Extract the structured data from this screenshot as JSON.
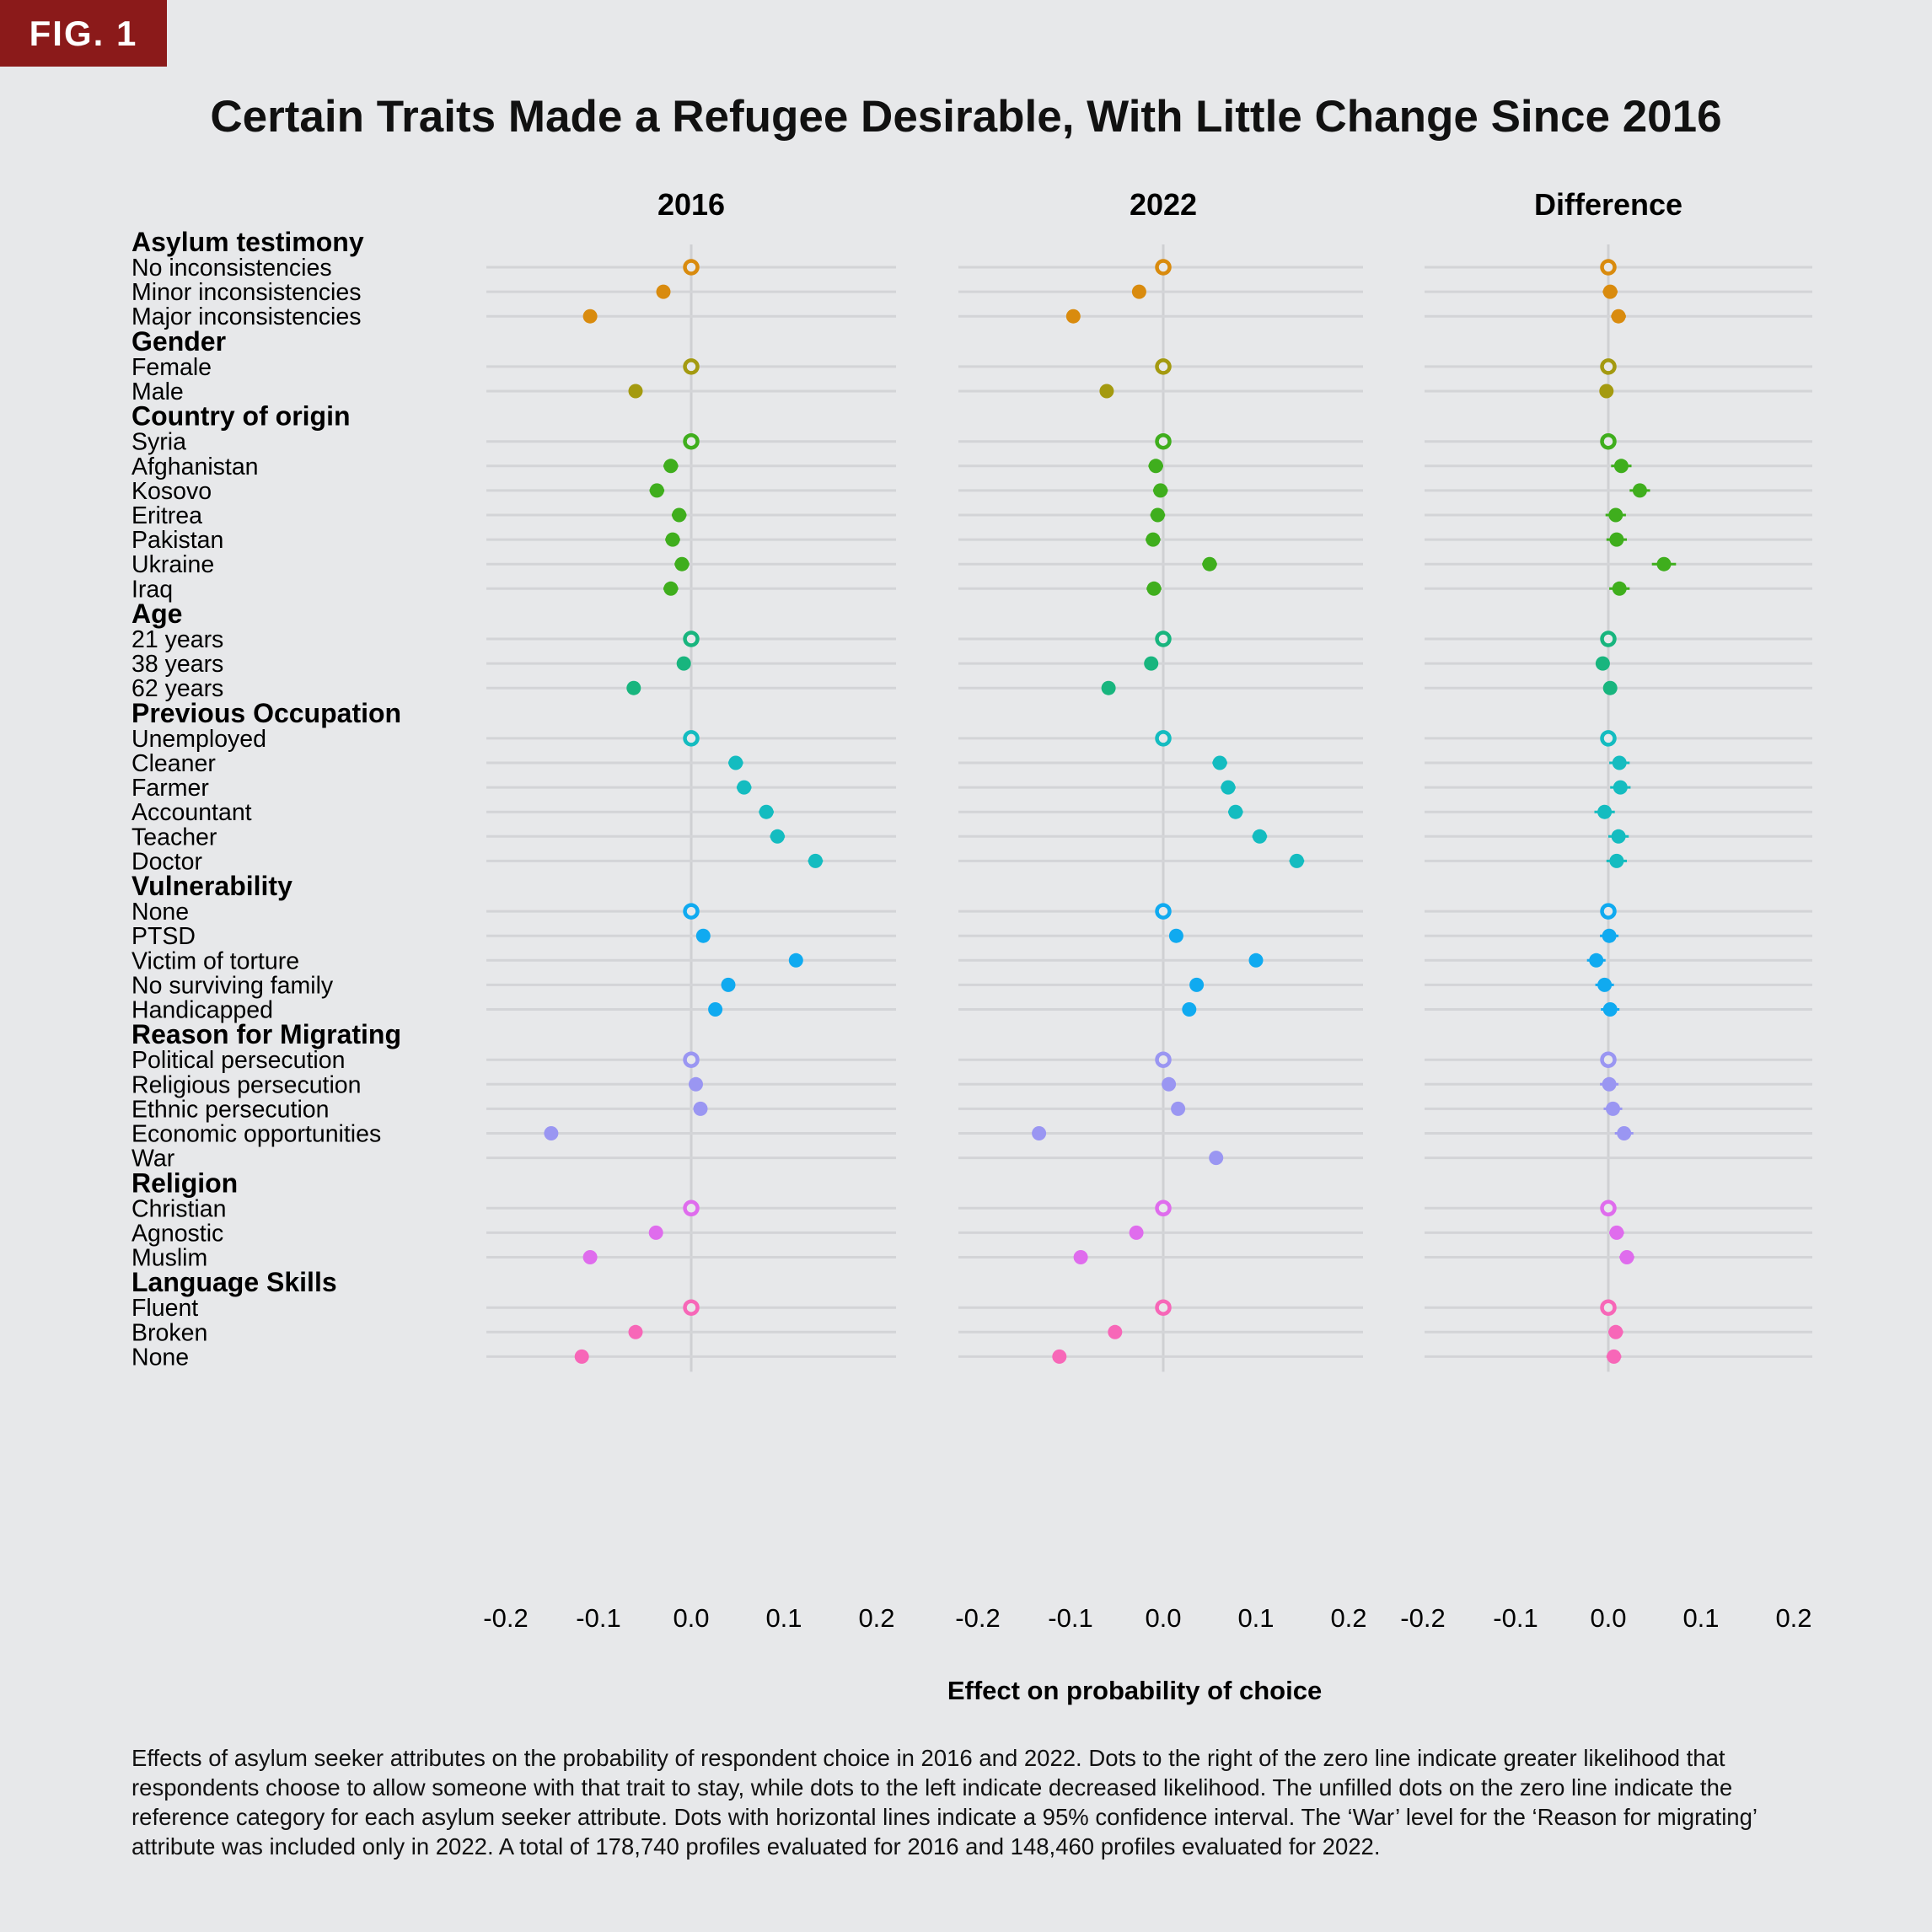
{
  "fig_label": "FIG. 1",
  "caption": "Effects of asylum seeker attributes on the probability of respondent choice in 2016 and 2022. Dots to the right of the zero line indicate greater likelihood that respondents choose to allow someone with that trait to stay, while dots to the left indicate decreased likelihood. The unfilled dots on the zero line indicate the reference category for each asylum seeker attribute. Dots with horizontal lines indicate a 95% confidence interval. The ‘War’ level for the ‘Reason for migrating’ attribute was included only in 2022. A total of 178,740 profiles evaluated for 2016 and 148,460 profiles evaluated for 2022.",
  "chart_data": {
    "type": "scatter",
    "title": "Certain Traits Made a Refugee Desirable, With Little Change Since 2016",
    "xlabel": "Effect on probability of choice",
    "panels": [
      "2016",
      "2022",
      "Difference"
    ],
    "xlim": [
      -0.2,
      0.2
    ],
    "xticks": [
      "-0.2",
      "-0.1",
      "0.0",
      "0.1",
      "0.2"
    ],
    "grid": true,
    "legend": "none",
    "note": "Hollow markers denote the reference category (value 0). Values are [estimate, ci_low, ci_high].",
    "groups": [
      {
        "name": "Asylum testimony",
        "color": "#d98b0e",
        "levels": [
          {
            "label": "No inconsistencies",
            "ref": true,
            "v2016": [
              0,
              0,
              0
            ],
            "v2022": [
              0,
              0,
              0
            ],
            "diff": [
              0,
              0,
              0
            ]
          },
          {
            "label": "Minor inconsistencies",
            "v2016": [
              -0.03,
              -0.036,
              -0.024
            ],
            "v2022": [
              -0.026,
              -0.032,
              -0.02
            ],
            "diff": [
              0.002,
              -0.006,
              0.01
            ]
          },
          {
            "label": "Major inconsistencies",
            "v2016": [
              -0.109,
              -0.115,
              -0.103
            ],
            "v2022": [
              -0.097,
              -0.103,
              -0.091
            ],
            "diff": [
              0.011,
              0.003,
              0.019
            ]
          }
        ]
      },
      {
        "name": "Gender",
        "color": "#a49a10",
        "levels": [
          {
            "label": "Female",
            "ref": true,
            "v2016": [
              0,
              0,
              0
            ],
            "v2022": [
              0,
              0,
              0
            ],
            "diff": [
              0,
              0,
              0
            ]
          },
          {
            "label": "Male",
            "v2016": [
              -0.06,
              -0.065,
              -0.055
            ],
            "v2022": [
              -0.061,
              -0.066,
              -0.056
            ],
            "diff": [
              -0.002,
              -0.008,
              0.004
            ]
          }
        ]
      },
      {
        "name": "Country of origin",
        "color": "#3fae1d",
        "levels": [
          {
            "label": "Syria",
            "ref": true,
            "v2016": [
              0,
              0,
              0
            ],
            "v2022": [
              0,
              0,
              0
            ],
            "diff": [
              0,
              0,
              0
            ]
          },
          {
            "label": "Afghanistan",
            "v2016": [
              -0.022,
              -0.03,
              -0.014
            ],
            "v2022": [
              -0.008,
              -0.016,
              0
            ],
            "diff": [
              0.014,
              0.003,
              0.025
            ]
          },
          {
            "label": "Kosovo",
            "v2016": [
              -0.037,
              -0.045,
              -0.029
            ],
            "v2022": [
              -0.003,
              -0.011,
              0.005
            ],
            "diff": [
              0.034,
              0.023,
              0.045
            ]
          },
          {
            "label": "Eritrea",
            "v2016": [
              -0.013,
              -0.021,
              -0.005
            ],
            "v2022": [
              -0.006,
              -0.014,
              0.002
            ],
            "diff": [
              0.008,
              -0.003,
              0.019
            ]
          },
          {
            "label": "Pakistan",
            "v2016": [
              -0.02,
              -0.028,
              -0.012
            ],
            "v2022": [
              -0.011,
              -0.019,
              -0.003
            ],
            "diff": [
              0.009,
              -0.002,
              0.02
            ]
          },
          {
            "label": "Ukraine",
            "v2016": [
              -0.01,
              -0.018,
              -0.002
            ],
            "v2022": [
              0.05,
              0.042,
              0.058
            ],
            "diff": [
              0.06,
              0.047,
              0.073
            ]
          },
          {
            "label": "Iraq",
            "v2016": [
              -0.022,
              -0.03,
              -0.014
            ],
            "v2022": [
              -0.01,
              -0.018,
              -0.002
            ],
            "diff": [
              0.012,
              0.001,
              0.023
            ]
          }
        ]
      },
      {
        "name": "Age",
        "color": "#18b57e",
        "levels": [
          {
            "label": "21 years",
            "ref": true,
            "v2016": [
              0,
              0,
              0
            ],
            "v2022": [
              0,
              0,
              0
            ],
            "diff": [
              0,
              0,
              0
            ]
          },
          {
            "label": "38 years",
            "v2016": [
              -0.008,
              -0.013,
              -0.003
            ],
            "v2022": [
              -0.013,
              -0.018,
              -0.008
            ],
            "diff": [
              -0.006,
              -0.012,
              0.001
            ]
          },
          {
            "label": "62 years",
            "v2016": [
              -0.062,
              -0.067,
              -0.057
            ],
            "v2022": [
              -0.059,
              -0.064,
              -0.054
            ],
            "diff": [
              0.002,
              -0.005,
              0.009
            ]
          }
        ]
      },
      {
        "name": "Previous Occupation",
        "color": "#14bcc0",
        "levels": [
          {
            "label": "Unemployed",
            "ref": true,
            "v2016": [
              0,
              0,
              0
            ],
            "v2022": [
              0,
              0,
              0
            ],
            "diff": [
              0,
              0,
              0
            ]
          },
          {
            "label": "Cleaner",
            "v2016": [
              0.048,
              0.04,
              0.056
            ],
            "v2022": [
              0.061,
              0.053,
              0.069
            ],
            "diff": [
              0.012,
              0.001,
              0.023
            ]
          },
          {
            "label": "Farmer",
            "v2016": [
              0.057,
              0.049,
              0.065
            ],
            "v2022": [
              0.07,
              0.062,
              0.078
            ],
            "diff": [
              0.013,
              0.002,
              0.024
            ]
          },
          {
            "label": "Accountant",
            "v2016": [
              0.081,
              0.073,
              0.089
            ],
            "v2022": [
              0.078,
              0.07,
              0.086
            ],
            "diff": [
              -0.004,
              -0.015,
              0.007
            ]
          },
          {
            "label": "Teacher",
            "v2016": [
              0.093,
              0.085,
              0.101
            ],
            "v2022": [
              0.104,
              0.096,
              0.112
            ],
            "diff": [
              0.011,
              0,
              0.022
            ]
          },
          {
            "label": "Doctor",
            "v2016": [
              0.134,
              0.126,
              0.142
            ],
            "v2022": [
              0.144,
              0.136,
              0.152
            ],
            "diff": [
              0.009,
              -0.002,
              0.02
            ]
          }
        ]
      },
      {
        "name": "Vulnerability",
        "color": "#10aaf0",
        "levels": [
          {
            "label": "None",
            "ref": true,
            "v2016": [
              0,
              0,
              0
            ],
            "v2022": [
              0,
              0,
              0
            ],
            "diff": [
              0,
              0,
              0
            ]
          },
          {
            "label": "PTSD",
            "v2016": [
              0.013,
              0.006,
              0.02
            ],
            "v2022": [
              0.014,
              0.007,
              0.021
            ],
            "diff": [
              0.001,
              -0.009,
              0.011
            ]
          },
          {
            "label": "Victim of torture",
            "v2016": [
              0.113,
              0.106,
              0.12
            ],
            "v2022": [
              0.1,
              0.093,
              0.107
            ],
            "diff": [
              -0.013,
              -0.023,
              -0.003
            ]
          },
          {
            "label": "No surviving family",
            "v2016": [
              0.04,
              0.033,
              0.047
            ],
            "v2022": [
              0.036,
              0.029,
              0.043
            ],
            "diff": [
              -0.004,
              -0.014,
              0.006
            ]
          },
          {
            "label": "Handicapped",
            "v2016": [
              0.026,
              0.019,
              0.033
            ],
            "v2022": [
              0.028,
              0.021,
              0.035
            ],
            "diff": [
              0.002,
              -0.008,
              0.012
            ]
          }
        ]
      },
      {
        "name": "Reason for Migrating",
        "color": "#9a96f2",
        "levels": [
          {
            "label": "Political persecution",
            "ref": true,
            "v2016": [
              0,
              0,
              0
            ],
            "v2022": [
              0,
              0,
              0
            ],
            "diff": [
              0,
              0,
              0
            ]
          },
          {
            "label": "Religious persecution",
            "v2016": [
              0.005,
              -0.002,
              0.012
            ],
            "v2022": [
              0.006,
              -0.001,
              0.013
            ],
            "diff": [
              0.001,
              -0.009,
              0.011
            ]
          },
          {
            "label": "Ethnic persecution",
            "v2016": [
              0.01,
              0.003,
              0.017
            ],
            "v2022": [
              0.016,
              0.009,
              0.023
            ],
            "diff": [
              0.005,
              -0.005,
              0.015
            ]
          },
          {
            "label": "Economic opportunities",
            "v2016": [
              -0.151,
              -0.158,
              -0.144
            ],
            "v2022": [
              -0.134,
              -0.141,
              -0.127
            ],
            "diff": [
              0.017,
              0.007,
              0.027
            ]
          },
          {
            "label": "War",
            "v2016": null,
            "v2022": [
              0.057,
              0.05,
              0.064
            ],
            "diff": null
          }
        ]
      },
      {
        "name": "Religion",
        "color": "#df6ced",
        "levels": [
          {
            "label": "Christian",
            "ref": true,
            "v2016": [
              0,
              0,
              0
            ],
            "v2022": [
              0,
              0,
              0
            ],
            "diff": [
              0,
              0,
              0
            ]
          },
          {
            "label": "Agnostic",
            "v2016": [
              -0.038,
              -0.044,
              -0.032
            ],
            "v2022": [
              -0.029,
              -0.035,
              -0.023
            ],
            "diff": [
              0.009,
              0.001,
              0.017
            ]
          },
          {
            "label": "Muslim",
            "v2016": [
              -0.109,
              -0.115,
              -0.103
            ],
            "v2022": [
              -0.089,
              -0.095,
              -0.083
            ],
            "diff": [
              0.02,
              0.012,
              0.028
            ]
          }
        ]
      },
      {
        "name": "Language Skills",
        "color": "#f767b8",
        "levels": [
          {
            "label": "Fluent",
            "ref": true,
            "v2016": [
              0,
              0,
              0
            ],
            "v2022": [
              0,
              0,
              0
            ],
            "diff": [
              0,
              0,
              0
            ]
          },
          {
            "label": "Broken",
            "v2016": [
              -0.06,
              -0.066,
              -0.054
            ],
            "v2022": [
              -0.052,
              -0.058,
              -0.046
            ],
            "diff": [
              0.008,
              0,
              0.016
            ]
          },
          {
            "label": "None",
            "v2016": [
              -0.118,
              -0.124,
              -0.112
            ],
            "v2022": [
              -0.112,
              -0.118,
              -0.106
            ],
            "diff": [
              0.006,
              -0.002,
              0.014
            ]
          }
        ]
      }
    ]
  }
}
